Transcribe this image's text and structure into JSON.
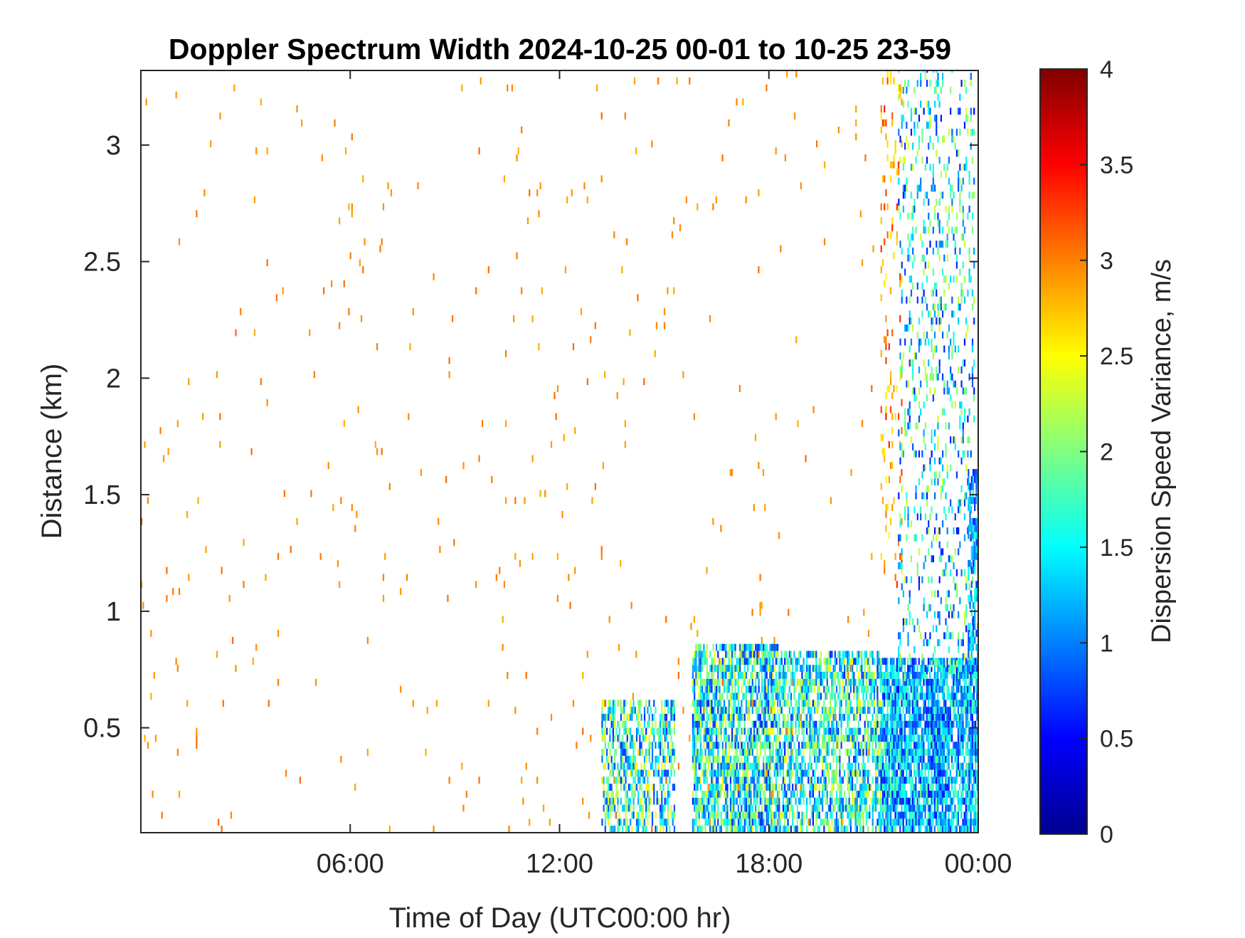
{
  "chart_data": {
    "type": "heatmap",
    "title": "Doppler Spectrum Width 2024-10-25 00-01 to 10-25 23-59",
    "xlabel": "Time of Day (UTC00:00 hr)",
    "ylabel": "Distance (km)",
    "x_unit": "hours UTC",
    "xlim": [
      0,
      24
    ],
    "ylim": [
      0.05,
      3.32
    ],
    "x_ticks": [
      {
        "value": 6,
        "label": "06:00"
      },
      {
        "value": 12,
        "label": "12:00"
      },
      {
        "value": 18,
        "label": "18:00"
      },
      {
        "value": 24,
        "label": "00:00"
      }
    ],
    "y_ticks": [
      {
        "value": 0.5,
        "label": "0.5"
      },
      {
        "value": 1,
        "label": "1"
      },
      {
        "value": 1.5,
        "label": "1.5"
      },
      {
        "value": 2,
        "label": "2"
      },
      {
        "value": 2.5,
        "label": "2.5"
      },
      {
        "value": 3,
        "label": "3"
      }
    ],
    "colorbar": {
      "label": "Dispersion Speed Variance, m/s",
      "colormap": "jet",
      "clim": [
        0,
        4
      ],
      "ticks": [
        {
          "value": 0,
          "label": "0"
        },
        {
          "value": 0.5,
          "label": "0.5"
        },
        {
          "value": 1,
          "label": "1"
        },
        {
          "value": 1.5,
          "label": "1.5"
        },
        {
          "value": 2,
          "label": "2"
        },
        {
          "value": 2.5,
          "label": "2.5"
        },
        {
          "value": 3,
          "label": "3"
        },
        {
          "value": 3.5,
          "label": "3.5"
        },
        {
          "value": 4,
          "label": "4"
        }
      ]
    },
    "grid": false,
    "regions": [
      {
        "x_range": [
          13.2,
          15.3
        ],
        "y_range": [
          0.05,
          0.62
        ],
        "value_range": [
          0.6,
          2.6
        ],
        "density": 0.55
      },
      {
        "x_range": [
          15.8,
          18.3
        ],
        "y_range": [
          0.05,
          0.85
        ],
        "value_range": [
          0.6,
          2.5
        ],
        "density": 0.75
      },
      {
        "x_range": [
          18.3,
          21.2
        ],
        "y_range": [
          0.05,
          0.82
        ],
        "value_range": [
          0.6,
          2.5
        ],
        "density": 0.65
      },
      {
        "x_range": [
          21.2,
          24.0
        ],
        "y_range": [
          0.05,
          0.8
        ],
        "value_range": [
          0.5,
          1.9
        ],
        "density": 0.85
      },
      {
        "x_range": [
          21.2,
          21.8
        ],
        "y_range": [
          1.1,
          3.32
        ],
        "value_range": [
          2.5,
          3.4
        ],
        "density": 0.12
      },
      {
        "x_range": [
          21.7,
          23.9
        ],
        "y_range": [
          0.7,
          3.32
        ],
        "value_range": [
          0.5,
          2.4
        ],
        "density": 0.18
      },
      {
        "x_range": [
          23.7,
          24.0
        ],
        "y_range": [
          0.8,
          1.6
        ],
        "value_range": [
          0.6,
          1.6
        ],
        "density": 0.6
      },
      {
        "x_range": [
          0.0,
          21.0
        ],
        "y_range": [
          0.05,
          3.32
        ],
        "value_range": [
          2.8,
          3.1
        ],
        "density": 0.008
      }
    ]
  }
}
